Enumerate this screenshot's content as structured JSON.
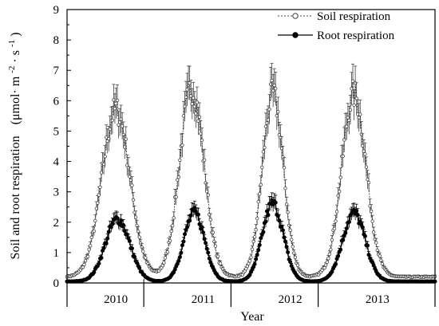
{
  "chart_data": {
    "type": "line",
    "xlabel": "Year",
    "ylabel": "Soil and root respiration",
    "ylabel_unit": "(μmol· m",
    "ylabel_unit_exp1": "-2",
    "ylabel_unit_mid": "· s",
    "ylabel_unit_exp2": "-1",
    "ylabel_unit_close": ")",
    "ylim": [
      0,
      9
    ],
    "yticks": [
      "0",
      "1",
      "2",
      "3",
      "4",
      "5",
      "6",
      "7",
      "8",
      "9"
    ],
    "xticks": [
      "2010",
      "2011",
      "2012",
      "2013"
    ],
    "legend_position": "top-right",
    "grid": false,
    "year_range": [
      2009.64,
      2013.86
    ],
    "series": [
      {
        "name": "Soil respiration",
        "marker": "open-circle",
        "line": "dotted",
        "color": "#444444",
        "baseline": 0.2,
        "peaks": [
          {
            "t": 2010.2,
            "peak": 5.7,
            "width": 0.16
          },
          {
            "t": 2011.07,
            "peak": 6.4,
            "width": 0.14
          },
          {
            "t": 2012.0,
            "peak": 6.2,
            "width": 0.12
          },
          {
            "t": 2012.93,
            "peak": 6.2,
            "width": 0.14
          }
        ]
      },
      {
        "name": "Root respiration",
        "marker": "filled-circle",
        "line": "solid",
        "color": "#000000",
        "baseline": 0.05,
        "peaks": [
          {
            "t": 2010.22,
            "peak": 2.1,
            "width": 0.14
          },
          {
            "t": 2011.1,
            "peak": 2.3,
            "width": 0.12
          },
          {
            "t": 2012.0,
            "peak": 2.6,
            "width": 0.12
          },
          {
            "t": 2012.93,
            "peak": 2.3,
            "width": 0.13
          }
        ]
      }
    ]
  }
}
